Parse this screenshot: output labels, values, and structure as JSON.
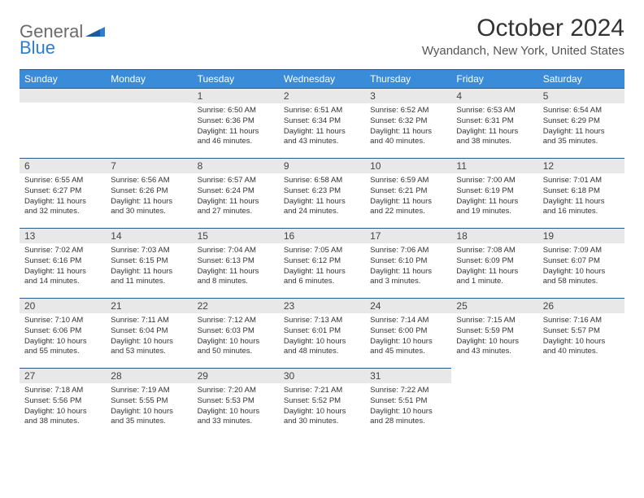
{
  "logo": {
    "text1": "General",
    "text2": "Blue"
  },
  "title": "October 2024",
  "location": "Wyandanch, New York, United States",
  "colors": {
    "header_bg": "#3a8bd8",
    "header_border": "#2a5a8a",
    "daynum_bg": "#e8e8e8",
    "text": "#333333",
    "logo_gray": "#6b6b6b",
    "logo_blue": "#2e7cd1"
  },
  "weekdays": [
    "Sunday",
    "Monday",
    "Tuesday",
    "Wednesday",
    "Thursday",
    "Friday",
    "Saturday"
  ],
  "weeks": [
    [
      null,
      null,
      {
        "d": "1",
        "sr": "6:50 AM",
        "ss": "6:36 PM",
        "dl": "11 hours and 46 minutes."
      },
      {
        "d": "2",
        "sr": "6:51 AM",
        "ss": "6:34 PM",
        "dl": "11 hours and 43 minutes."
      },
      {
        "d": "3",
        "sr": "6:52 AM",
        "ss": "6:32 PM",
        "dl": "11 hours and 40 minutes."
      },
      {
        "d": "4",
        "sr": "6:53 AM",
        "ss": "6:31 PM",
        "dl": "11 hours and 38 minutes."
      },
      {
        "d": "5",
        "sr": "6:54 AM",
        "ss": "6:29 PM",
        "dl": "11 hours and 35 minutes."
      }
    ],
    [
      {
        "d": "6",
        "sr": "6:55 AM",
        "ss": "6:27 PM",
        "dl": "11 hours and 32 minutes."
      },
      {
        "d": "7",
        "sr": "6:56 AM",
        "ss": "6:26 PM",
        "dl": "11 hours and 30 minutes."
      },
      {
        "d": "8",
        "sr": "6:57 AM",
        "ss": "6:24 PM",
        "dl": "11 hours and 27 minutes."
      },
      {
        "d": "9",
        "sr": "6:58 AM",
        "ss": "6:23 PM",
        "dl": "11 hours and 24 minutes."
      },
      {
        "d": "10",
        "sr": "6:59 AM",
        "ss": "6:21 PM",
        "dl": "11 hours and 22 minutes."
      },
      {
        "d": "11",
        "sr": "7:00 AM",
        "ss": "6:19 PM",
        "dl": "11 hours and 19 minutes."
      },
      {
        "d": "12",
        "sr": "7:01 AM",
        "ss": "6:18 PM",
        "dl": "11 hours and 16 minutes."
      }
    ],
    [
      {
        "d": "13",
        "sr": "7:02 AM",
        "ss": "6:16 PM",
        "dl": "11 hours and 14 minutes."
      },
      {
        "d": "14",
        "sr": "7:03 AM",
        "ss": "6:15 PM",
        "dl": "11 hours and 11 minutes."
      },
      {
        "d": "15",
        "sr": "7:04 AM",
        "ss": "6:13 PM",
        "dl": "11 hours and 8 minutes."
      },
      {
        "d": "16",
        "sr": "7:05 AM",
        "ss": "6:12 PM",
        "dl": "11 hours and 6 minutes."
      },
      {
        "d": "17",
        "sr": "7:06 AM",
        "ss": "6:10 PM",
        "dl": "11 hours and 3 minutes."
      },
      {
        "d": "18",
        "sr": "7:08 AM",
        "ss": "6:09 PM",
        "dl": "11 hours and 1 minute."
      },
      {
        "d": "19",
        "sr": "7:09 AM",
        "ss": "6:07 PM",
        "dl": "10 hours and 58 minutes."
      }
    ],
    [
      {
        "d": "20",
        "sr": "7:10 AM",
        "ss": "6:06 PM",
        "dl": "10 hours and 55 minutes."
      },
      {
        "d": "21",
        "sr": "7:11 AM",
        "ss": "6:04 PM",
        "dl": "10 hours and 53 minutes."
      },
      {
        "d": "22",
        "sr": "7:12 AM",
        "ss": "6:03 PM",
        "dl": "10 hours and 50 minutes."
      },
      {
        "d": "23",
        "sr": "7:13 AM",
        "ss": "6:01 PM",
        "dl": "10 hours and 48 minutes."
      },
      {
        "d": "24",
        "sr": "7:14 AM",
        "ss": "6:00 PM",
        "dl": "10 hours and 45 minutes."
      },
      {
        "d": "25",
        "sr": "7:15 AM",
        "ss": "5:59 PM",
        "dl": "10 hours and 43 minutes."
      },
      {
        "d": "26",
        "sr": "7:16 AM",
        "ss": "5:57 PM",
        "dl": "10 hours and 40 minutes."
      }
    ],
    [
      {
        "d": "27",
        "sr": "7:18 AM",
        "ss": "5:56 PM",
        "dl": "10 hours and 38 minutes."
      },
      {
        "d": "28",
        "sr": "7:19 AM",
        "ss": "5:55 PM",
        "dl": "10 hours and 35 minutes."
      },
      {
        "d": "29",
        "sr": "7:20 AM",
        "ss": "5:53 PM",
        "dl": "10 hours and 33 minutes."
      },
      {
        "d": "30",
        "sr": "7:21 AM",
        "ss": "5:52 PM",
        "dl": "10 hours and 30 minutes."
      },
      {
        "d": "31",
        "sr": "7:22 AM",
        "ss": "5:51 PM",
        "dl": "10 hours and 28 minutes."
      },
      null,
      null
    ]
  ],
  "labels": {
    "sunrise": "Sunrise:",
    "sunset": "Sunset:",
    "daylight": "Daylight:"
  }
}
